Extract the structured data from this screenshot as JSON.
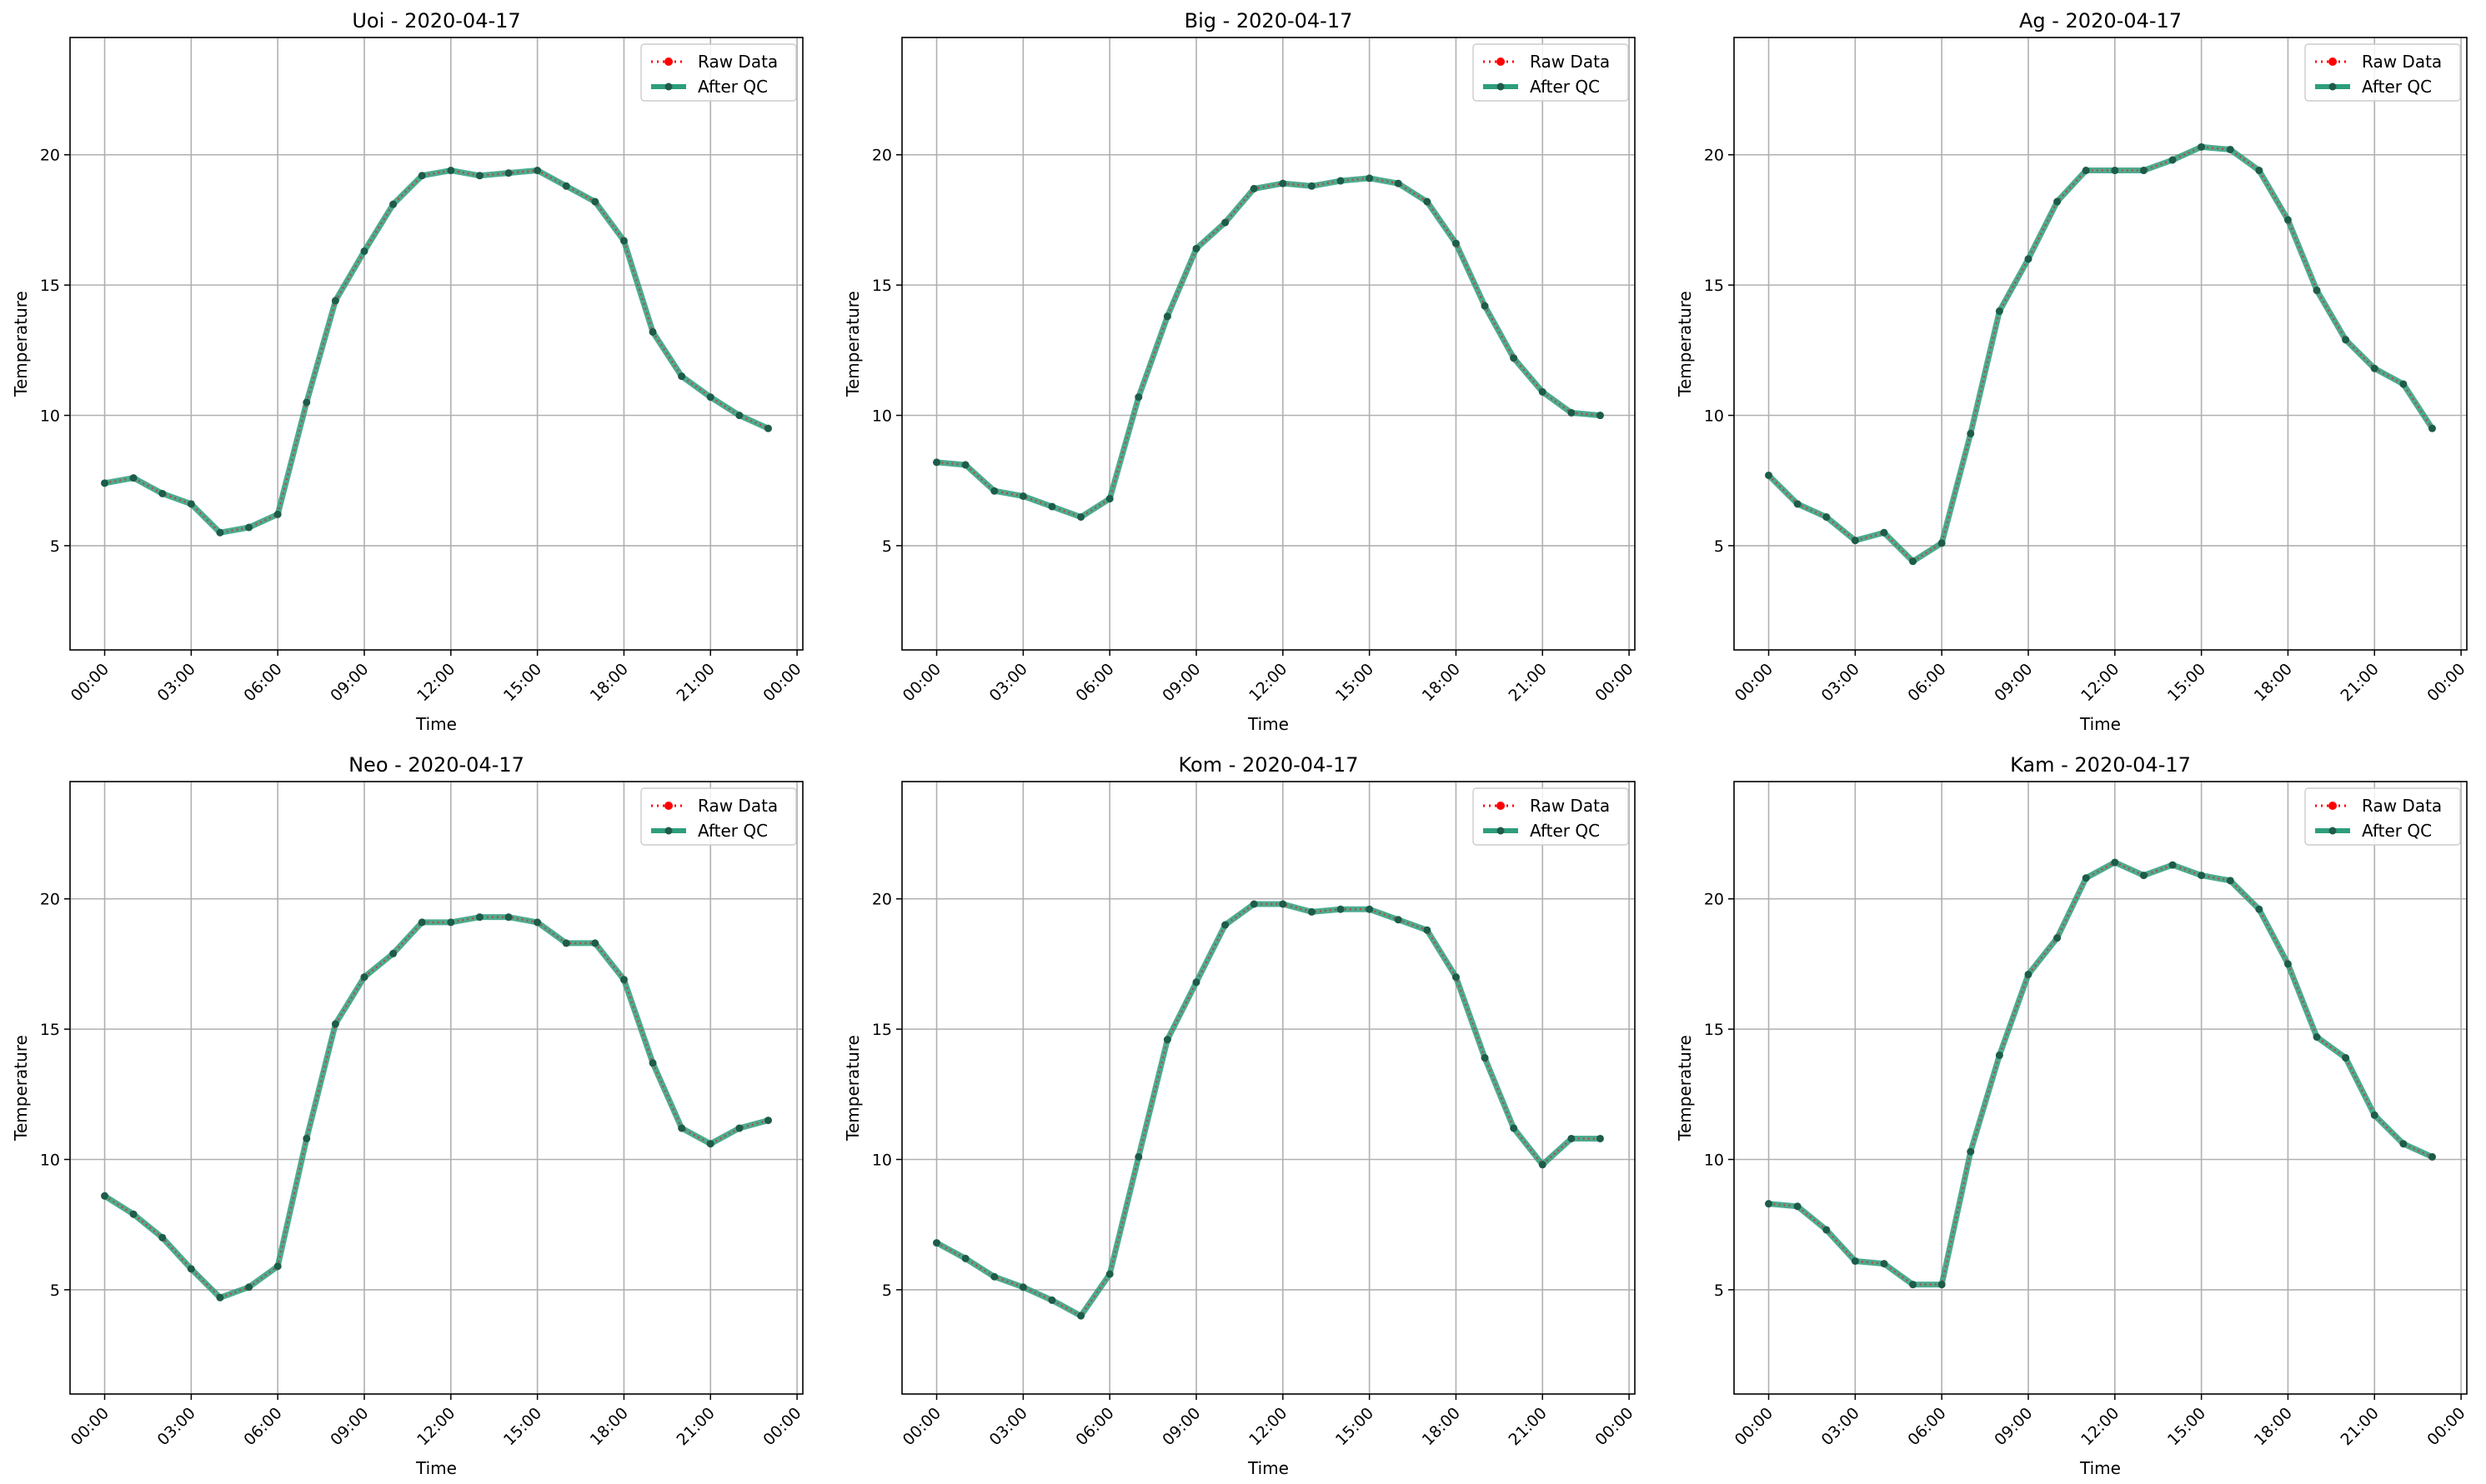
{
  "figure": {
    "legend_labels": {
      "raw": "Raw Data",
      "qc": "After QC"
    },
    "colors": {
      "raw": "#ff0000",
      "qc": "#2e9e7c",
      "grid": "#b0b0b0",
      "dark_point": "#1e5c4a"
    }
  },
  "chart_data": [
    {
      "type": "line",
      "title": "Uoi - 2020-04-17",
      "xlabel": "Time",
      "ylabel": "Temperature",
      "x_ticks": [
        "00:00",
        "03:00",
        "06:00",
        "09:00",
        "12:00",
        "15:00",
        "18:00",
        "21:00",
        "00:00"
      ],
      "y_ticks": [
        5,
        10,
        15,
        20
      ],
      "xlim": [
        -1.2,
        24.2
      ],
      "ylim": [
        1.0,
        24.5
      ],
      "grid": true,
      "legend": "top-right",
      "x": [
        0,
        1,
        2,
        3,
        4,
        5,
        6,
        7,
        8,
        9,
        10,
        11,
        12,
        13,
        14,
        15,
        16,
        17,
        18,
        19,
        20,
        21,
        22,
        23
      ],
      "series": [
        {
          "name": "Raw Data",
          "values": [
            7.4,
            7.6,
            7.0,
            6.6,
            5.5,
            5.7,
            6.2,
            10.5,
            14.4,
            16.3,
            18.1,
            19.2,
            19.4,
            19.2,
            19.3,
            19.4,
            18.8,
            18.2,
            16.7,
            13.2,
            11.5,
            10.7,
            10.0,
            9.5
          ]
        },
        {
          "name": "After QC",
          "values": [
            7.4,
            7.6,
            7.0,
            6.6,
            5.5,
            5.7,
            6.2,
            10.5,
            14.4,
            16.3,
            18.1,
            19.2,
            19.4,
            19.2,
            19.3,
            19.4,
            18.8,
            18.2,
            16.7,
            13.2,
            11.5,
            10.7,
            10.0,
            9.5
          ]
        }
      ]
    },
    {
      "type": "line",
      "title": "Big - 2020-04-17",
      "xlabel": "Time",
      "ylabel": "Temperature",
      "x_ticks": [
        "00:00",
        "03:00",
        "06:00",
        "09:00",
        "12:00",
        "15:00",
        "18:00",
        "21:00",
        "00:00"
      ],
      "y_ticks": [
        5,
        10,
        15,
        20
      ],
      "xlim": [
        -1.2,
        24.2
      ],
      "ylim": [
        1.0,
        24.5
      ],
      "grid": true,
      "legend": "top-right",
      "x": [
        0,
        1,
        2,
        3,
        4,
        5,
        6,
        7,
        8,
        9,
        10,
        11,
        12,
        13,
        14,
        15,
        16,
        17,
        18,
        19,
        20,
        21,
        22,
        23
      ],
      "series": [
        {
          "name": "Raw Data",
          "values": [
            8.2,
            8.1,
            7.1,
            6.9,
            6.5,
            6.1,
            6.8,
            10.7,
            13.8,
            16.4,
            17.4,
            18.7,
            18.9,
            18.8,
            19.0,
            19.1,
            18.9,
            18.2,
            16.6,
            14.2,
            12.2,
            10.9,
            10.1,
            10.0
          ]
        },
        {
          "name": "After QC",
          "values": [
            8.2,
            8.1,
            7.1,
            6.9,
            6.5,
            6.1,
            6.8,
            10.7,
            13.8,
            16.4,
            17.4,
            18.7,
            18.9,
            18.8,
            19.0,
            19.1,
            18.9,
            18.2,
            16.6,
            14.2,
            12.2,
            10.9,
            10.1,
            10.0
          ]
        }
      ]
    },
    {
      "type": "line",
      "title": "Ag - 2020-04-17",
      "xlabel": "Time",
      "ylabel": "Temperature",
      "x_ticks": [
        "00:00",
        "03:00",
        "06:00",
        "09:00",
        "12:00",
        "15:00",
        "18:00",
        "21:00",
        "00:00"
      ],
      "y_ticks": [
        5,
        10,
        15,
        20
      ],
      "xlim": [
        -1.2,
        24.2
      ],
      "ylim": [
        1.0,
        24.5
      ],
      "grid": true,
      "legend": "top-right",
      "x": [
        0,
        1,
        2,
        3,
        4,
        5,
        6,
        7,
        8,
        9,
        10,
        11,
        12,
        13,
        14,
        15,
        16,
        17,
        18,
        19,
        20,
        21,
        22,
        23
      ],
      "series": [
        {
          "name": "Raw Data",
          "values": [
            7.7,
            6.6,
            6.1,
            5.2,
            5.5,
            4.4,
            5.1,
            9.3,
            14.0,
            16.0,
            18.2,
            19.4,
            19.4,
            19.4,
            19.8,
            20.3,
            20.2,
            19.4,
            17.5,
            14.8,
            12.9,
            11.8,
            11.2,
            9.5
          ]
        },
        {
          "name": "After QC",
          "values": [
            7.7,
            6.6,
            6.1,
            5.2,
            5.5,
            4.4,
            5.1,
            9.3,
            14.0,
            16.0,
            18.2,
            19.4,
            19.4,
            19.4,
            19.8,
            20.3,
            20.2,
            19.4,
            17.5,
            14.8,
            12.9,
            11.8,
            11.2,
            9.5
          ]
        }
      ]
    },
    {
      "type": "line",
      "title": "Neo - 2020-04-17",
      "xlabel": "Time",
      "ylabel": "Temperature",
      "x_ticks": [
        "00:00",
        "03:00",
        "06:00",
        "09:00",
        "12:00",
        "15:00",
        "18:00",
        "21:00",
        "00:00"
      ],
      "y_ticks": [
        5,
        10,
        15,
        20
      ],
      "xlim": [
        -1.2,
        24.2
      ],
      "ylim": [
        1.0,
        24.5
      ],
      "grid": true,
      "legend": "top-right",
      "x": [
        0,
        1,
        2,
        3,
        4,
        5,
        6,
        7,
        8,
        9,
        10,
        11,
        12,
        13,
        14,
        15,
        16,
        17,
        18,
        19,
        20,
        21,
        22,
        23
      ],
      "series": [
        {
          "name": "Raw Data",
          "values": [
            8.6,
            7.9,
            7.0,
            5.8,
            4.7,
            5.1,
            5.9,
            10.8,
            15.2,
            17.0,
            17.9,
            19.1,
            19.1,
            19.3,
            19.3,
            19.1,
            18.3,
            18.3,
            16.9,
            13.7,
            11.2,
            10.6,
            11.2,
            11.5
          ]
        },
        {
          "name": "After QC",
          "values": [
            8.6,
            7.9,
            7.0,
            5.8,
            4.7,
            5.1,
            5.9,
            10.8,
            15.2,
            17.0,
            17.9,
            19.1,
            19.1,
            19.3,
            19.3,
            19.1,
            18.3,
            18.3,
            16.9,
            13.7,
            11.2,
            10.6,
            11.2,
            11.5
          ]
        }
      ]
    },
    {
      "type": "line",
      "title": "Kom - 2020-04-17",
      "xlabel": "Time",
      "ylabel": "Temperature",
      "x_ticks": [
        "00:00",
        "03:00",
        "06:00",
        "09:00",
        "12:00",
        "15:00",
        "18:00",
        "21:00",
        "00:00"
      ],
      "y_ticks": [
        5,
        10,
        15,
        20
      ],
      "xlim": [
        -1.2,
        24.2
      ],
      "ylim": [
        1.0,
        24.5
      ],
      "grid": true,
      "legend": "top-right",
      "x": [
        0,
        1,
        2,
        3,
        4,
        5,
        6,
        7,
        8,
        9,
        10,
        11,
        12,
        13,
        14,
        15,
        16,
        17,
        18,
        19,
        20,
        21,
        22,
        23
      ],
      "series": [
        {
          "name": "Raw Data",
          "values": [
            6.8,
            6.2,
            5.5,
            5.1,
            4.6,
            4.0,
            5.6,
            10.1,
            14.6,
            16.8,
            19.0,
            19.8,
            19.8,
            19.5,
            19.6,
            19.6,
            19.2,
            18.8,
            17.0,
            13.9,
            11.2,
            9.8,
            10.8,
            10.8
          ]
        },
        {
          "name": "After QC",
          "values": [
            6.8,
            6.2,
            5.5,
            5.1,
            4.6,
            4.0,
            5.6,
            10.1,
            14.6,
            16.8,
            19.0,
            19.8,
            19.8,
            19.5,
            19.6,
            19.6,
            19.2,
            18.8,
            17.0,
            13.9,
            11.2,
            9.8,
            10.8,
            10.8
          ]
        }
      ]
    },
    {
      "type": "line",
      "title": "Kam - 2020-04-17",
      "xlabel": "Time",
      "ylabel": "Temperature",
      "x_ticks": [
        "00:00",
        "03:00",
        "06:00",
        "09:00",
        "12:00",
        "15:00",
        "18:00",
        "21:00",
        "00:00"
      ],
      "y_ticks": [
        5,
        10,
        15,
        20
      ],
      "xlim": [
        -1.2,
        24.2
      ],
      "ylim": [
        1.0,
        24.5
      ],
      "grid": true,
      "legend": "top-right",
      "x": [
        0,
        1,
        2,
        3,
        4,
        5,
        6,
        7,
        8,
        9,
        10,
        11,
        12,
        13,
        14,
        15,
        16,
        17,
        18,
        19,
        20,
        21,
        22,
        23
      ],
      "series": [
        {
          "name": "Raw Data",
          "values": [
            8.3,
            8.2,
            7.3,
            6.1,
            6.0,
            5.2,
            5.2,
            10.3,
            14.0,
            17.1,
            18.5,
            20.8,
            21.4,
            20.9,
            21.3,
            20.9,
            20.7,
            19.6,
            17.5,
            14.7,
            13.9,
            11.7,
            10.6,
            10.1
          ]
        },
        {
          "name": "After QC",
          "values": [
            8.3,
            8.2,
            7.3,
            6.1,
            6.0,
            5.2,
            5.2,
            10.3,
            14.0,
            17.1,
            18.5,
            20.8,
            21.4,
            20.9,
            21.3,
            20.9,
            20.7,
            19.6,
            17.5,
            14.7,
            13.9,
            11.7,
            10.6,
            10.1
          ]
        }
      ]
    }
  ]
}
